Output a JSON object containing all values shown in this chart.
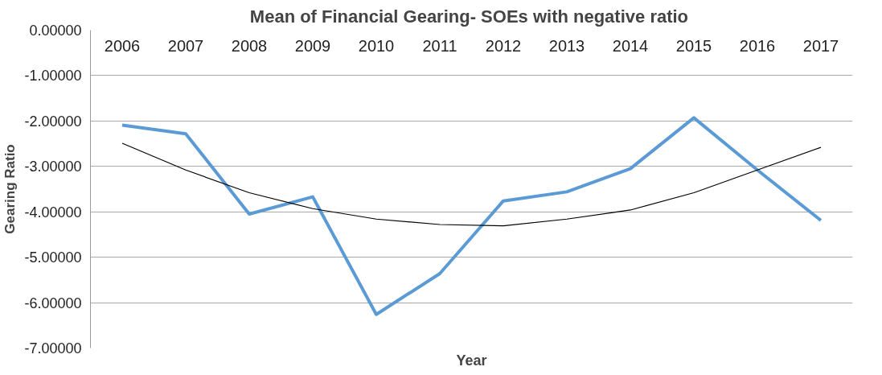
{
  "chart_data": {
    "type": "line",
    "title": "Mean of Financial Gearing-  SOEs with negative ratio",
    "xlabel": "Year",
    "ylabel": "Gearing Ratio",
    "categories": [
      "2006",
      "2007",
      "2008",
      "2009",
      "2010",
      "2011",
      "2012",
      "2013",
      "2014",
      "2015",
      "2016",
      "2017"
    ],
    "series": [
      {
        "color": "#5b9bd5",
        "values": [
          -2.09,
          -2.28,
          -4.05,
          -3.67,
          -6.26,
          -5.36,
          -3.76,
          -3.56,
          -3.05,
          -1.93,
          -3.08,
          -4.19
        ]
      },
      {
        "type": "line",
        "color": "#000000",
        "values": [
          -2.49,
          -3.08,
          -3.58,
          -3.93,
          -4.16,
          -4.28,
          -4.31,
          -4.16,
          -3.96,
          -3.58,
          -3.08,
          -2.58
        ]
      }
    ],
    "ylim": [
      -7,
      0
    ],
    "yticks": [
      {
        "value": 0,
        "label": "0.00000"
      },
      {
        "value": -1,
        "label": "-1.00000"
      },
      {
        "value": -2,
        "label": "-2.00000"
      },
      {
        "value": -3,
        "label": "-3.00000"
      },
      {
        "value": -4,
        "label": "-4.00000"
      },
      {
        "value": -5,
        "label": "-5.00000"
      },
      {
        "value": -6,
        "label": "-6.00000"
      },
      {
        "value": -7,
        "label": "-7.00000"
      }
    ],
    "grid": "y",
    "marker": "none",
    "line_style": "solid"
  }
}
